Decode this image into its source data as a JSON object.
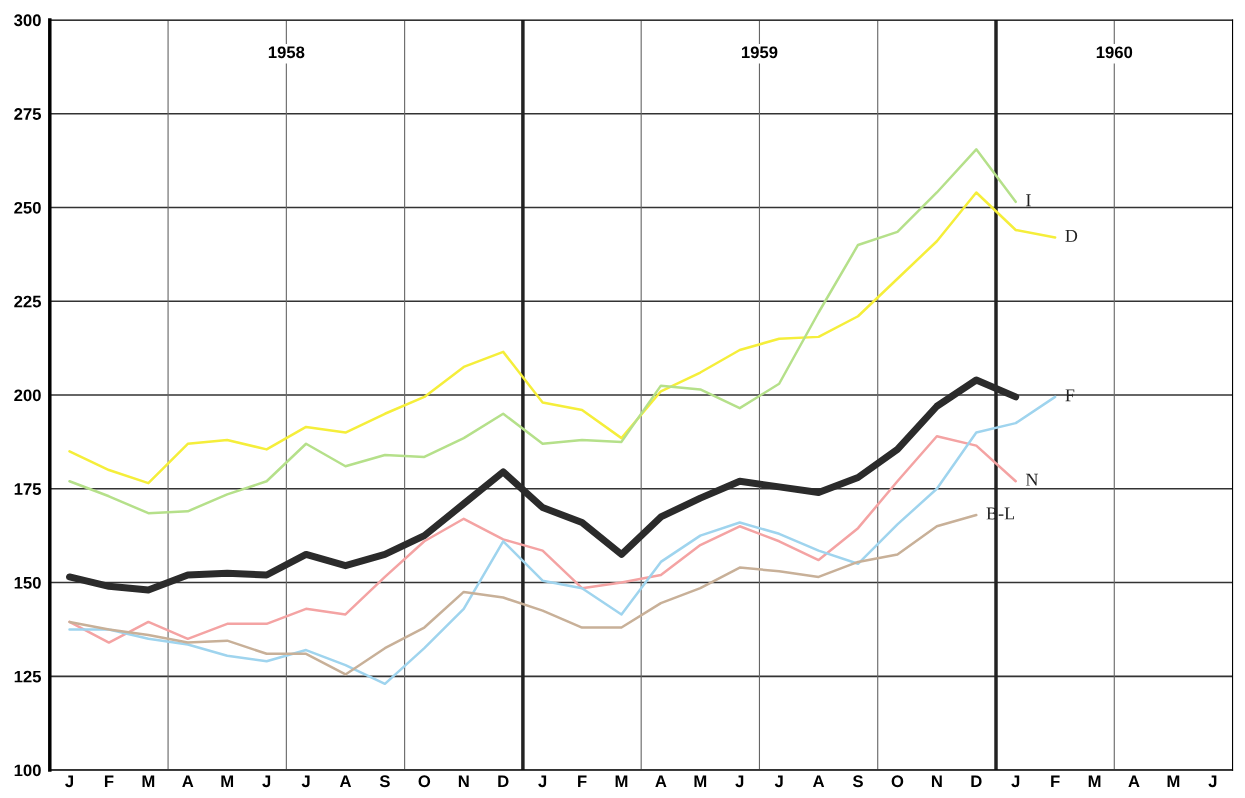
{
  "chart_data": {
    "type": "line",
    "categories": [
      "J",
      "F",
      "M",
      "A",
      "M",
      "J",
      "J",
      "A",
      "S",
      "O",
      "N",
      "D",
      "J",
      "F",
      "M",
      "A",
      "M",
      "J",
      "J",
      "A",
      "S",
      "O",
      "N",
      "D",
      "J",
      "F",
      "M",
      "A",
      "M",
      "J"
    ],
    "ylim": [
      100,
      300
    ],
    "yticks": [
      100,
      125,
      150,
      175,
      200,
      225,
      250,
      275,
      300
    ],
    "annotations": [
      "1958",
      "1959",
      "1960"
    ],
    "grid": true,
    "marker": "none",
    "line_style": "solid",
    "series": [
      {
        "name": "D",
        "color": "#f5ee3a",
        "values": [
          185,
          180,
          176.5,
          187,
          188,
          185.5,
          191.5,
          190,
          195,
          199.5,
          207.5,
          211.5,
          198,
          196,
          188.5,
          201,
          206,
          212,
          215,
          215.5,
          221,
          231,
          241,
          254,
          244,
          242,
          null,
          null,
          null,
          null
        ]
      },
      {
        "name": "I",
        "color": "#b5e08a",
        "values": [
          177,
          173,
          168.5,
          169,
          173.5,
          177,
          187,
          181,
          184,
          183.5,
          188.5,
          195,
          187,
          188,
          187.5,
          202.5,
          201.5,
          196.5,
          203,
          222,
          240,
          243.5,
          254,
          265.5,
          251.5,
          null,
          null,
          null,
          null,
          null
        ]
      },
      {
        "color": "#2b2b2b",
        "values": [
          151.5,
          149,
          148,
          152,
          152.5,
          152,
          157.5,
          154.5,
          157.5,
          162.5,
          171,
          179.5,
          170,
          166,
          157.5,
          167.5,
          172.5,
          177,
          175.5,
          174,
          178,
          185.5,
          197,
          204,
          199.5,
          null,
          null,
          null,
          null,
          null
        ]
      },
      {
        "name": "N",
        "color": "#f4a3a3",
        "values": [
          139.5,
          134,
          139.5,
          135,
          139,
          139,
          143,
          141.5,
          151.5,
          161,
          167,
          161.5,
          158.5,
          148.5,
          150,
          152,
          160,
          165,
          161,
          156,
          164.5,
          177,
          189,
          186.5,
          177,
          null,
          null,
          null,
          null,
          null
        ]
      },
      {
        "name": "F",
        "color": "#9fd4ee",
        "values": [
          137.5,
          137.5,
          135,
          133.5,
          130.5,
          129,
          132,
          128,
          123,
          132.5,
          143,
          161,
          150.5,
          148.5,
          141.5,
          155.5,
          162.5,
          166,
          163,
          158.5,
          155,
          165.5,
          175,
          190,
          192.5,
          199.5,
          null,
          null,
          null,
          null
        ]
      },
      {
        "name": "B-L",
        "color": "#c8b098",
        "values": [
          139.5,
          137.5,
          136,
          134,
          134.5,
          131,
          131,
          125.5,
          132.5,
          138,
          147.5,
          146,
          142.5,
          138,
          138,
          144.5,
          148.5,
          154,
          153,
          151.5,
          155.5,
          157.5,
          165,
          168,
          null,
          null,
          null,
          null,
          null,
          null
        ]
      }
    ]
  }
}
